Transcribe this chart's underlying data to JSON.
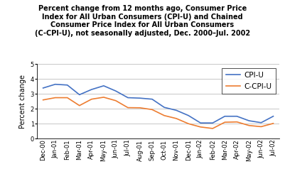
{
  "title_line1": "Percent change from 12 months ago, Consumer Price",
  "title_line2": "Index for All Urban Consumers (CPI-U) and Chained",
  "title_line3": "Consumer Price Index for All Urban Consumers",
  "title_line4": "(C-CPI-U), not seasonally adjusted, Dec. 2000–Jul. 2002",
  "ylabel": "Percent change",
  "x_labels": [
    "Dec-00",
    "Jan-01",
    "Feb-01",
    "Mar-01",
    "Apr-01",
    "May-01",
    "Jun-01",
    "Jul-01",
    "Aug-01",
    "Sep-01",
    "Oct-01",
    "Nov-01",
    "Dec-01",
    "Jan-02",
    "Feb-02",
    "Mar-02",
    "Apr-02",
    "May-02",
    "Jun-02",
    "Jul-02"
  ],
  "cpi_u": [
    3.4,
    3.65,
    3.6,
    2.95,
    3.3,
    3.55,
    3.2,
    2.75,
    2.72,
    2.65,
    2.1,
    1.9,
    1.55,
    1.05,
    1.05,
    1.5,
    1.5,
    1.2,
    1.07,
    1.5
  ],
  "c_cpi_u": [
    2.6,
    2.75,
    2.75,
    2.22,
    2.65,
    2.78,
    2.55,
    2.08,
    2.07,
    1.95,
    1.55,
    1.35,
    1.0,
    0.78,
    0.68,
    1.1,
    1.12,
    0.88,
    0.8,
    1.02
  ],
  "cpi_color": "#4472C4",
  "ccpi_color": "#ED7D31",
  "ylim": [
    0,
    5
  ],
  "yticks": [
    0,
    1,
    2,
    3,
    4,
    5
  ],
  "background_color": "#ffffff",
  "grid_color": "#b0b0b0",
  "title_fontsize": 7.0,
  "axis_label_fontsize": 7.0,
  "tick_fontsize": 6.0,
  "legend_fontsize": 7.5
}
